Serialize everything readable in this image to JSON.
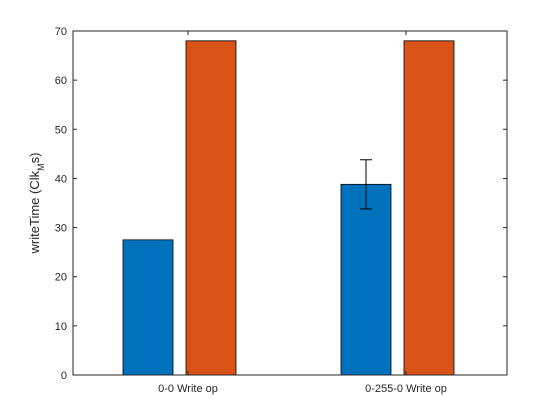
{
  "chart_data": {
    "type": "bar",
    "categories": [
      "0-0 Write op",
      "0-255-0 Write op"
    ],
    "series": [
      {
        "values": [
          27.5,
          38.8
        ],
        "errors": [
          null,
          5.0
        ],
        "color": "#0072BD"
      },
      {
        "values": [
          68.0,
          68.0
        ],
        "errors": [
          null,
          null
        ],
        "color": "#D95319"
      }
    ],
    "xlabel": "",
    "ylabel": "writeTime (Clk",
    "ylabel_subscript": "M",
    "ylabel_suffix": "s)",
    "ylim": [
      0,
      70
    ],
    "yticks": [
      0,
      10,
      20,
      30,
      40,
      50,
      60,
      70
    ],
    "grid": false,
    "legend": "none"
  }
}
